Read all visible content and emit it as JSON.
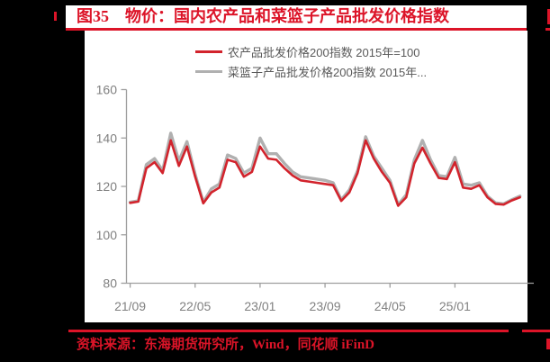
{
  "header": {
    "title": "图35　物价：国内农产品和菜篮子产品批发价格指数"
  },
  "legend": {
    "items": [
      {
        "label": "农产品批发价格200指数 2015年=100",
        "color": "#d2232c"
      },
      {
        "label": "菜篮子产品批发价格200指数 2015年...",
        "color": "#b0b0b0"
      }
    ]
  },
  "footer": {
    "source": "资料来源：东海期货研究所，Wind，同花顺 iFinD"
  },
  "colors": {
    "accent_red": "#dc1428",
    "line_red": "#d2232c",
    "line_gray": "#b0b0b0",
    "axis_text": "#808080",
    "legend_text": "#595959",
    "background": "#000000",
    "panel": "#ffffff"
  },
  "chart_data": {
    "type": "line",
    "title": "",
    "xlabel": "",
    "ylabel": "",
    "ylim": [
      80,
      160
    ],
    "yticks": [
      80,
      100,
      120,
      140,
      160
    ],
    "grid": false,
    "legend_position": "top",
    "x_labels_shown": [
      "21/09",
      "22/05",
      "23/01",
      "23/09",
      "24/05",
      "25/01"
    ],
    "x": [
      "21/09",
      "21/10",
      "21/11",
      "21/12",
      "22/01",
      "22/02",
      "22/03",
      "22/04",
      "22/05",
      "22/06",
      "22/07",
      "22/08",
      "22/09",
      "22/10",
      "22/11",
      "22/12",
      "23/01",
      "23/02",
      "23/03",
      "23/04",
      "23/05",
      "23/06",
      "23/07",
      "23/08",
      "23/09",
      "23/10",
      "23/11",
      "23/12",
      "24/01",
      "24/02",
      "24/03",
      "24/04",
      "24/05",
      "24/06",
      "24/07",
      "24/08",
      "24/09",
      "24/10",
      "24/11",
      "24/12",
      "25/01",
      "25/02",
      "25/03",
      "25/04",
      "25/05",
      "25/06",
      "25/07",
      "25/08",
      "25/09"
    ],
    "series": [
      {
        "name": "农产品批发价格200指数 2015年=100",
        "color": "#d2232c",
        "values": [
          113.2,
          113.7,
          127.5,
          130,
          125.5,
          139,
          128.5,
          136.5,
          124,
          113,
          117.5,
          119.5,
          131,
          130,
          124,
          126,
          136.5,
          131.5,
          131,
          127.5,
          124.5,
          122.5,
          122,
          121.5,
          121,
          120.5,
          114,
          117.5,
          125.5,
          139,
          131.5,
          126,
          121.5,
          112,
          115.5,
          129.5,
          136,
          129.5,
          123.5,
          123,
          130,
          119.5,
          119,
          120.5,
          115.5,
          112.8,
          112.5,
          114.2,
          115.5
        ]
      },
      {
        "name": "菜篮子产品批发价格200指数 2015年...",
        "color": "#b0b0b0",
        "values": [
          113.5,
          114,
          129,
          131.5,
          126.5,
          142,
          130.5,
          138.5,
          125,
          113.5,
          119,
          121,
          133,
          131.5,
          125.5,
          127.5,
          140,
          133.5,
          133.5,
          129.5,
          126,
          124,
          123.5,
          123,
          122.5,
          121.5,
          114.5,
          118.5,
          126.5,
          140.5,
          132.5,
          127.5,
          122.5,
          112.5,
          116.5,
          131,
          139,
          131,
          124.5,
          124,
          132,
          121,
          120.5,
          121.5,
          116,
          113.2,
          112.8,
          114.5,
          116
        ]
      }
    ]
  }
}
